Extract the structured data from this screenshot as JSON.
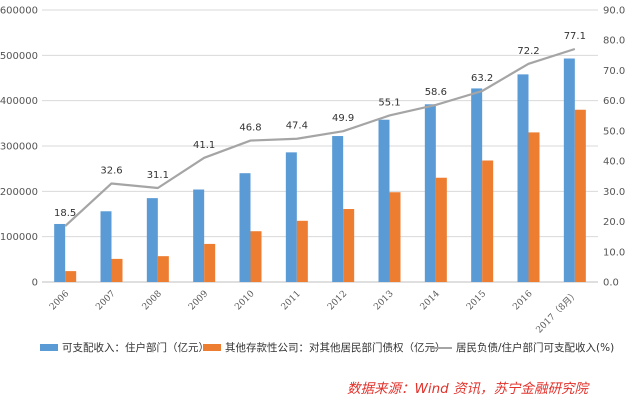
{
  "chart_data": {
    "type": "bar",
    "categories": [
      "2006",
      "2007",
      "2008",
      "2009",
      "2010",
      "2011",
      "2012",
      "2013",
      "2014",
      "2015",
      "2016",
      "2017（8月）"
    ],
    "series": [
      {
        "name": "可支配收入：住户部门（亿元）",
        "kind": "bar",
        "axis": "left",
        "color": "#5b9bd5",
        "values": [
          128000,
          156000,
          185000,
          204000,
          240000,
          286000,
          322000,
          358000,
          392000,
          427000,
          458000,
          493000
        ]
      },
      {
        "name": "其他存款性公司：对其他居民部门债权（亿元）",
        "kind": "bar",
        "axis": "left",
        "color": "#ed7d31",
        "values": [
          24000,
          51000,
          57000,
          84000,
          112000,
          135000,
          161000,
          198000,
          230000,
          268000,
          330000,
          380000
        ]
      },
      {
        "name": "居民负债/住户部门可支配收入(%)",
        "kind": "line",
        "axis": "right",
        "color": "#a5a5a5",
        "values": [
          18.5,
          32.6,
          31.1,
          41.1,
          46.8,
          47.4,
          49.9,
          55.1,
          58.6,
          63.2,
          72.2,
          77.1
        ]
      }
    ],
    "data_labels": [
      "18.5",
      "32.6",
      "31.1",
      "41.1",
      "46.8",
      "47.4",
      "49.9",
      "55.1",
      "58.6",
      "63.2",
      "72.2",
      "77.1"
    ],
    "left_axis": {
      "ylim": [
        0,
        600000
      ],
      "ticks": [
        "0",
        "100000",
        "200000",
        "300000",
        "400000",
        "500000",
        "600000"
      ]
    },
    "right_axis": {
      "ylim": [
        0,
        90
      ],
      "ticks": [
        "0.0",
        "10.0",
        "20.0",
        "30.0",
        "40.0",
        "50.0",
        "60.0",
        "70.0",
        "80.0",
        "90.0"
      ]
    },
    "title": "",
    "xlabel": "",
    "ylabel": "",
    "grid": true,
    "legend_position": "bottom"
  },
  "legend": {
    "bar1": "可支配收入：住户部门（亿元）",
    "bar2": "其他存款性公司：对其他居民部门债权（亿元）",
    "line": "居民负债/住户部门可支配收入(%)"
  },
  "source_text": "数据来源：Wind 资讯，苏宁金融研究院",
  "watermark_text": "苏宁金融研究院"
}
